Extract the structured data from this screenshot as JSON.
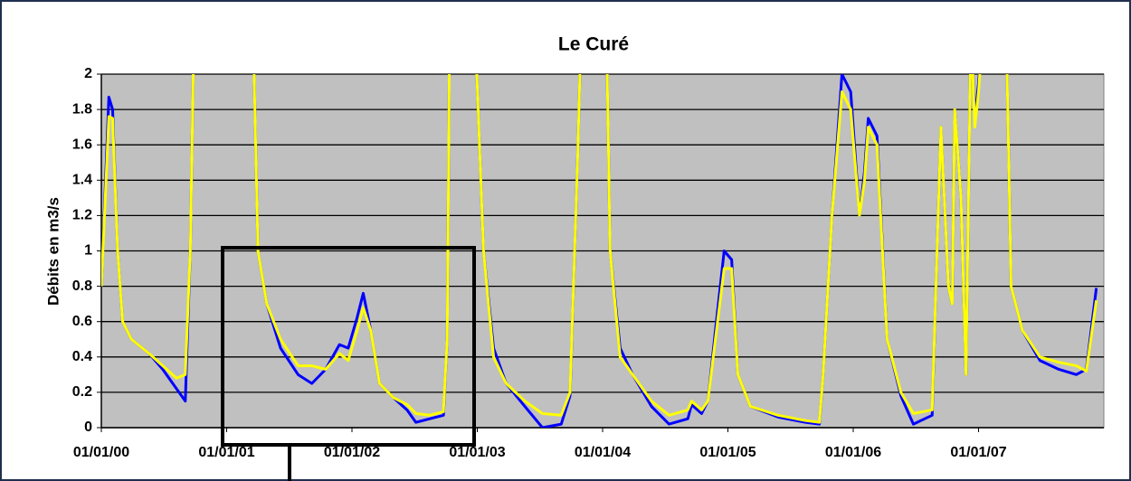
{
  "chart_data": {
    "type": "line",
    "title": "Le Curé",
    "y_label": "Débits en m3/s",
    "xlim": [
      2000,
      2008
    ],
    "xticks": [
      {
        "value": 2000,
        "label": "01/01/00"
      },
      {
        "value": 2001,
        "label": "01/01/01"
      },
      {
        "value": 2002,
        "label": "01/01/02"
      },
      {
        "value": 2003,
        "label": "01/01/03"
      },
      {
        "value": 2004,
        "label": "01/01/04"
      },
      {
        "value": 2005,
        "label": "01/01/05"
      },
      {
        "value": 2006,
        "label": "01/01/06"
      },
      {
        "value": 2007,
        "label": "01/01/07"
      }
    ],
    "ylim": [
      0,
      2
    ],
    "yticks": [
      0,
      0.2,
      0.4,
      0.6,
      0.8,
      1,
      1.2,
      1.4,
      1.6,
      1.8,
      2
    ],
    "grid": true,
    "x": [
      2000.0,
      2000.06,
      2000.09,
      2000.13,
      2000.17,
      2000.24,
      2000.38,
      2000.49,
      2000.6,
      2000.67,
      2000.71,
      2000.74,
      2001.21,
      2001.25,
      2001.32,
      2001.43,
      2001.57,
      2001.68,
      2001.79,
      2001.9,
      2001.97,
      2002.04,
      2002.09,
      2002.15,
      2002.22,
      2002.33,
      2002.44,
      2002.51,
      2002.62,
      2002.73,
      2002.76,
      2002.78,
      2002.98,
      2003.05,
      2003.13,
      2003.23,
      2003.38,
      2003.52,
      2003.67,
      2003.74,
      2003.8,
      2003.83,
      2004.03,
      2004.06,
      2004.14,
      2004.24,
      2004.39,
      2004.53,
      2004.68,
      2004.71,
      2004.79,
      2004.84,
      2004.9,
      2004.97,
      2005.03,
      2005.08,
      2005.18,
      2005.4,
      2005.62,
      2005.73,
      2005.76,
      2005.83,
      2005.91,
      2005.98,
      2006.05,
      2006.09,
      2006.12,
      2006.19,
      2006.27,
      2006.38,
      2006.48,
      2006.63,
      2006.66,
      2006.7,
      2006.76,
      2006.79,
      2006.81,
      2006.86,
      2006.9,
      2006.94,
      2006.97,
      2007.0,
      2007.04,
      2007.22,
      2007.26,
      2007.35,
      2007.49,
      2007.64,
      2007.78,
      2007.86,
      2007.94
    ],
    "series": [
      {
        "color": "#0000ff",
        "values": [
          0.8,
          1.87,
          1.8,
          1.0,
          0.6,
          0.5,
          0.42,
          0.33,
          0.22,
          0.15,
          1.0,
          2.3,
          2.3,
          1.0,
          0.7,
          0.45,
          0.3,
          0.25,
          0.33,
          0.47,
          0.45,
          0.62,
          0.76,
          0.55,
          0.25,
          0.17,
          0.1,
          0.03,
          0.05,
          0.07,
          0.5,
          2.3,
          2.3,
          1.0,
          0.45,
          0.25,
          0.12,
          0.0,
          0.02,
          0.18,
          1.5,
          2.3,
          2.3,
          1.0,
          0.45,
          0.3,
          0.12,
          0.02,
          0.05,
          0.13,
          0.08,
          0.15,
          0.55,
          1.0,
          0.95,
          0.3,
          0.12,
          0.06,
          0.03,
          0.02,
          0.3,
          1.2,
          2.0,
          1.9,
          1.2,
          1.45,
          1.75,
          1.65,
          0.5,
          0.18,
          0.02,
          0.07,
          0.8,
          1.7,
          0.8,
          0.7,
          1.8,
          1.3,
          0.3,
          2.3,
          1.75,
          1.95,
          2.3,
          2.3,
          0.8,
          0.55,
          0.38,
          0.33,
          0.3,
          0.33,
          0.79
        ]
      },
      {
        "color": "#ffff00",
        "values": [
          0.8,
          1.76,
          1.75,
          1.0,
          0.6,
          0.5,
          0.42,
          0.35,
          0.28,
          0.3,
          1.0,
          2.3,
          2.3,
          1.0,
          0.7,
          0.5,
          0.35,
          0.35,
          0.33,
          0.42,
          0.38,
          0.55,
          0.68,
          0.55,
          0.25,
          0.17,
          0.13,
          0.08,
          0.07,
          0.09,
          0.5,
          2.3,
          2.3,
          1.0,
          0.4,
          0.25,
          0.15,
          0.08,
          0.07,
          0.2,
          1.5,
          2.3,
          2.3,
          1.0,
          0.4,
          0.3,
          0.15,
          0.07,
          0.1,
          0.15,
          0.1,
          0.15,
          0.5,
          0.9,
          0.9,
          0.3,
          0.12,
          0.07,
          0.04,
          0.03,
          0.3,
          1.2,
          1.9,
          1.8,
          1.2,
          1.4,
          1.7,
          1.6,
          0.5,
          0.2,
          0.08,
          0.1,
          0.8,
          1.7,
          0.8,
          0.7,
          1.8,
          1.3,
          0.3,
          2.3,
          1.7,
          1.9,
          2.3,
          2.3,
          0.8,
          0.55,
          0.4,
          0.37,
          0.35,
          0.32,
          0.72
        ]
      }
    ]
  }
}
